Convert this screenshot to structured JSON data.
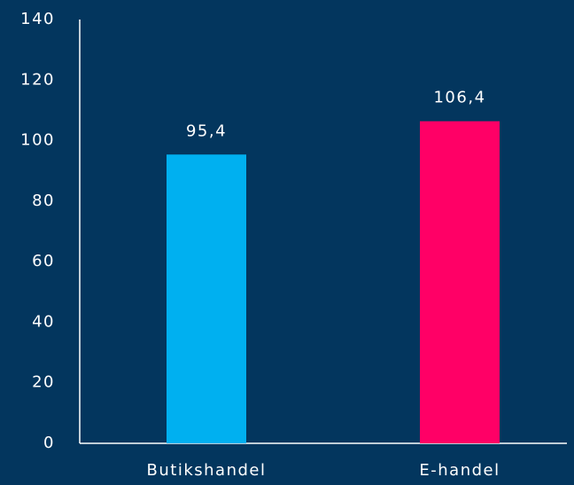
{
  "chart_data": {
    "type": "bar",
    "categories": [
      "Butikshandel",
      "E-handel"
    ],
    "values": [
      95.4,
      106.4
    ],
    "value_labels": [
      "95,4",
      "106,4"
    ],
    "colors": [
      "#00b0f0",
      "#ff0066"
    ],
    "ylim": [
      0,
      140
    ],
    "yticks": [
      0,
      20,
      40,
      60,
      80,
      100,
      120,
      140
    ],
    "grid": false
  }
}
